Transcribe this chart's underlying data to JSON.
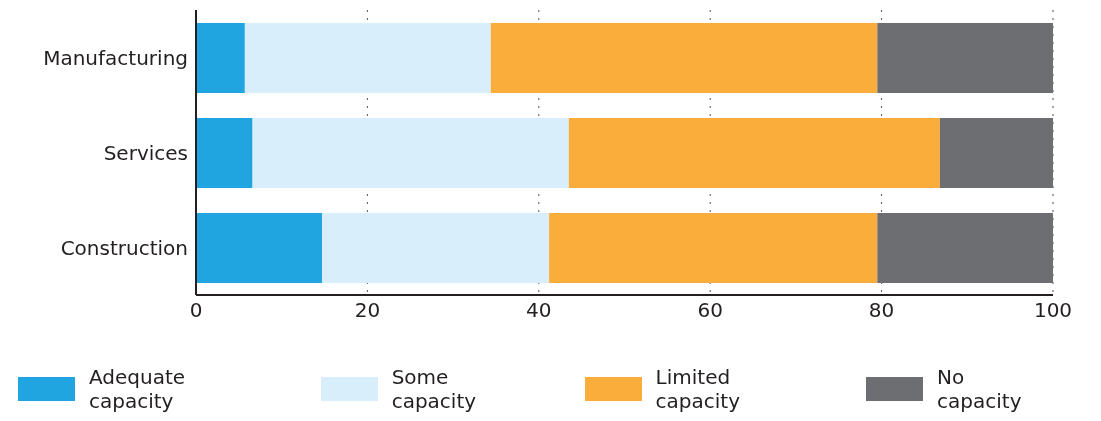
{
  "chart_data": {
    "type": "bar",
    "orientation": "horizontal",
    "stacked": true,
    "categories": [
      "Manufacturing",
      "Services",
      "Construction"
    ],
    "series": [
      {
        "name": "Adequate capacity",
        "color": "#21a5e0",
        "values": [
          5.7,
          6.6,
          14.7
        ]
      },
      {
        "name": "Some capacity",
        "color": "#d9eefb",
        "values": [
          28.7,
          36.9,
          26.5
        ]
      },
      {
        "name": "Limited capacity",
        "color": "#fbad3c",
        "values": [
          45.1,
          43.3,
          38.3
        ]
      },
      {
        "name": "No capacity",
        "color": "#6d6e71",
        "values": [
          20.5,
          13.2,
          20.5
        ]
      }
    ],
    "xlim": [
      0,
      100
    ],
    "xticks": [
      0,
      20,
      40,
      60,
      80,
      100
    ],
    "grid": "x",
    "legend": "bottom"
  }
}
